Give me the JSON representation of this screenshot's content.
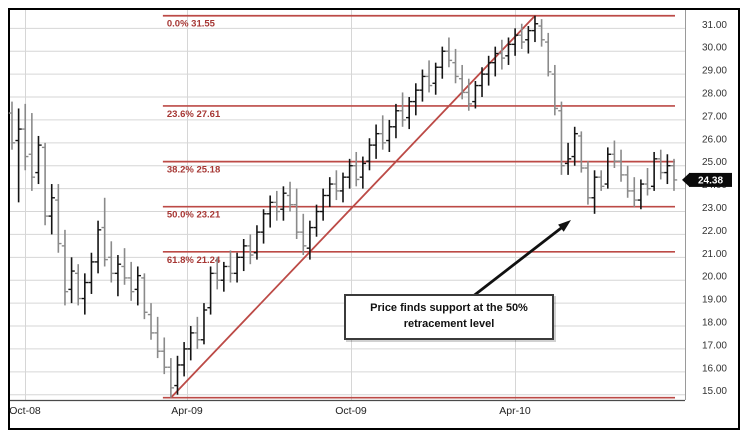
{
  "chart_data": {
    "type": "ohlc",
    "description": "Weekly OHLC price chart with Fibonacci retracement levels drawn from the Apr-09 swing low to the Apr-10 swing high",
    "x_axis": {
      "tick_labels": [
        "Oct-08",
        "Apr-09",
        "Oct-09",
        "Apr-10"
      ]
    },
    "y_axis": {
      "min": 15,
      "max": 31,
      "step": 1,
      "tick_labels": [
        "31.00",
        "30.00",
        "29.00",
        "28.00",
        "27.00",
        "26.00",
        "25.00",
        "24.00",
        "23.00",
        "22.00",
        "21.00",
        "20.00",
        "19.00",
        "18.00",
        "17.00",
        "16.00",
        "15.00"
      ],
      "side": "right"
    },
    "grid": true,
    "fibonacci_levels": [
      {
        "label": "0.0% 31.55",
        "percent": "0.0%",
        "price": 31.55
      },
      {
        "label": "23.6% 27.61",
        "percent": "23.6%",
        "price": 27.61
      },
      {
        "label": "38.2% 25.18",
        "percent": "38.2%",
        "price": 25.18
      },
      {
        "label": "50.0% 23.21",
        "percent": "50.0%",
        "price": 23.21
      },
      {
        "label": "61.8% 21.24",
        "percent": "61.8%",
        "price": 21.24
      },
      {
        "label": "",
        "percent": "100%",
        "price": 14.87
      }
    ],
    "swing": {
      "low_bar_index": 24,
      "low_price": 14.87,
      "high_bar_index": 79,
      "high_price": 31.55
    },
    "last_price_label": "24.38",
    "last_price": 24.38,
    "annotation": "Price finds support at the 50% retracement level",
    "bars_ohlc": [
      [
        27.3,
        27.8,
        25.7,
        26.0
      ],
      [
        26.1,
        27.5,
        23.4,
        26.6
      ],
      [
        26.6,
        27.7,
        24.8,
        25.4
      ],
      [
        25.5,
        27.3,
        23.9,
        24.5
      ],
      [
        24.7,
        26.3,
        24.2,
        25.9
      ],
      [
        25.8,
        26.0,
        22.4,
        22.8
      ],
      [
        22.8,
        24.2,
        22.0,
        23.6
      ],
      [
        23.5,
        24.2,
        21.2,
        21.6
      ],
      [
        21.5,
        22.2,
        18.9,
        19.5
      ],
      [
        19.6,
        21.0,
        19.0,
        20.4
      ],
      [
        20.3,
        20.7,
        18.9,
        19.2
      ],
      [
        19.2,
        20.3,
        18.5,
        19.9
      ],
      [
        19.9,
        21.2,
        19.4,
        20.8
      ],
      [
        20.8,
        22.6,
        20.3,
        22.2
      ],
      [
        22.3,
        23.6,
        20.6,
        20.9
      ],
      [
        21.0,
        21.7,
        19.9,
        20.3
      ],
      [
        20.3,
        21.1,
        19.3,
        20.7
      ],
      [
        20.6,
        21.4,
        19.8,
        20.1
      ],
      [
        20.1,
        20.8,
        19.1,
        19.5
      ],
      [
        19.6,
        20.6,
        18.9,
        20.2
      ],
      [
        20.1,
        20.3,
        18.3,
        18.6
      ],
      [
        18.5,
        19.0,
        17.4,
        17.7
      ],
      [
        17.7,
        18.4,
        16.6,
        16.9
      ],
      [
        16.9,
        17.5,
        15.9,
        16.2
      ],
      [
        16.2,
        16.6,
        14.87,
        15.3
      ],
      [
        15.4,
        16.7,
        15.0,
        16.3
      ],
      [
        16.3,
        17.3,
        15.8,
        17.0
      ],
      [
        17.0,
        18.0,
        16.5,
        17.7
      ],
      [
        17.7,
        18.4,
        17.0,
        17.4
      ],
      [
        17.4,
        19.0,
        17.2,
        18.7
      ],
      [
        18.8,
        20.6,
        18.5,
        20.3
      ],
      [
        20.3,
        21.0,
        19.6,
        20.0
      ],
      [
        20.0,
        20.8,
        19.5,
        20.6
      ],
      [
        20.6,
        21.3,
        19.9,
        20.3
      ],
      [
        20.3,
        21.2,
        19.9,
        21.0
      ],
      [
        21.0,
        21.8,
        20.4,
        21.5
      ],
      [
        21.5,
        22.0,
        20.7,
        21.1
      ],
      [
        21.2,
        22.4,
        20.9,
        22.1
      ],
      [
        22.1,
        23.1,
        21.6,
        22.9
      ],
      [
        22.9,
        23.7,
        22.3,
        23.4
      ],
      [
        23.4,
        23.9,
        22.6,
        23.0
      ],
      [
        23.1,
        24.1,
        22.6,
        23.8
      ],
      [
        23.7,
        24.3,
        23.0,
        23.3
      ],
      [
        23.3,
        24.0,
        21.8,
        22.1
      ],
      [
        22.1,
        22.9,
        21.1,
        21.5
      ],
      [
        21.4,
        22.6,
        20.9,
        22.3
      ],
      [
        22.3,
        23.3,
        21.9,
        23.0
      ],
      [
        23.0,
        24.0,
        22.6,
        23.7
      ],
      [
        23.7,
        24.5,
        23.2,
        24.2
      ],
      [
        24.2,
        24.8,
        23.5,
        23.9
      ],
      [
        23.9,
        24.7,
        23.4,
        24.5
      ],
      [
        24.5,
        25.3,
        24.0,
        25.0
      ],
      [
        25.0,
        25.6,
        24.1,
        24.4
      ],
      [
        24.5,
        25.4,
        24.0,
        25.1
      ],
      [
        25.2,
        26.2,
        24.8,
        25.9
      ],
      [
        25.9,
        26.8,
        25.3,
        26.4
      ],
      [
        26.4,
        27.2,
        25.7,
        26.0
      ],
      [
        26.1,
        27.0,
        25.6,
        26.7
      ],
      [
        26.7,
        27.7,
        26.2,
        27.4
      ],
      [
        27.4,
        28.2,
        26.7,
        27.0
      ],
      [
        27.1,
        28.0,
        26.6,
        27.8
      ],
      [
        27.8,
        28.6,
        27.2,
        28.3
      ],
      [
        28.3,
        29.2,
        27.8,
        28.9
      ],
      [
        28.9,
        29.6,
        28.2,
        28.5
      ],
      [
        28.6,
        29.5,
        28.1,
        29.3
      ],
      [
        29.3,
        30.2,
        28.8,
        30.0
      ],
      [
        30.0,
        30.6,
        29.3,
        29.6
      ],
      [
        29.5,
        30.1,
        28.6,
        28.9
      ],
      [
        28.8,
        29.4,
        27.9,
        28.2
      ],
      [
        28.2,
        28.8,
        27.4,
        27.7
      ],
      [
        27.8,
        28.7,
        27.5,
        28.5
      ],
      [
        28.5,
        29.3,
        28.0,
        29.0
      ],
      [
        29.0,
        29.8,
        28.5,
        29.5
      ],
      [
        29.5,
        30.2,
        28.9,
        29.9
      ],
      [
        29.9,
        30.5,
        29.2,
        29.7
      ],
      [
        29.8,
        30.6,
        29.4,
        30.3
      ],
      [
        30.3,
        31.0,
        29.8,
        30.7
      ],
      [
        30.7,
        31.2,
        30.1,
        30.4
      ],
      [
        30.5,
        31.1,
        29.9,
        30.9
      ],
      [
        30.9,
        31.55,
        30.4,
        31.2
      ],
      [
        31.1,
        31.4,
        30.2,
        30.5
      ],
      [
        30.4,
        30.8,
        28.9,
        29.1
      ],
      [
        29.0,
        29.4,
        27.2,
        27.5
      ],
      [
        27.4,
        27.8,
        24.6,
        25.0
      ],
      [
        25.1,
        26.0,
        24.6,
        25.3
      ],
      [
        25.4,
        26.7,
        25.0,
        26.4
      ],
      [
        26.3,
        26.5,
        24.7,
        24.9
      ],
      [
        24.9,
        25.2,
        23.3,
        23.6
      ],
      [
        23.6,
        24.8,
        22.9,
        24.5
      ],
      [
        24.5,
        24.8,
        23.9,
        24.1
      ],
      [
        24.2,
        25.8,
        24.0,
        25.5
      ],
      [
        25.5,
        26.1,
        24.9,
        25.2
      ],
      [
        25.2,
        25.7,
        24.3,
        24.6
      ],
      [
        24.6,
        25.0,
        23.6,
        23.9
      ],
      [
        23.9,
        24.5,
        23.2,
        23.5
      ],
      [
        23.5,
        24.4,
        23.1,
        24.2
      ],
      [
        24.2,
        24.9,
        23.7,
        24.0
      ],
      [
        24.1,
        25.6,
        23.9,
        25.3
      ],
      [
        25.3,
        25.7,
        24.4,
        24.7
      ],
      [
        24.7,
        25.5,
        24.2,
        25.0
      ],
      [
        25.0,
        25.3,
        23.9,
        24.38
      ]
    ]
  },
  "colors": {
    "fib_line": "#bc4a46",
    "fib_label": "#a63734",
    "trend_line": "#bc4a46",
    "grid": "#d6d6d6",
    "axis_line": "#4a4a4a",
    "separator": "#9a9a9a",
    "bar_up": "#141414",
    "bar_down": "#8a8a8a",
    "axis_text": "#333333",
    "badge_bg": "#0a0a0a",
    "badge_text": "#ffffff",
    "arrow": "#111111",
    "frame": "#000000"
  }
}
